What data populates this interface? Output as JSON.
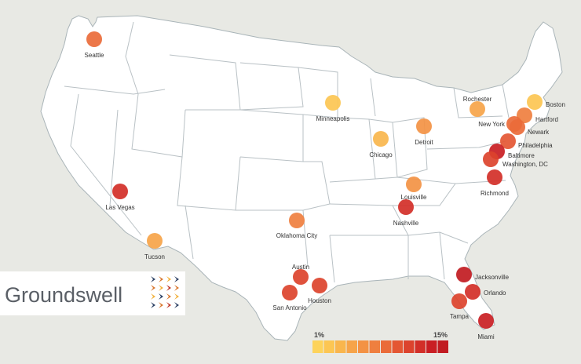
{
  "map": {
    "background": "#e8e9e4",
    "land_fill": "#ffffff",
    "border_color": "#b9c1c5"
  },
  "logo": {
    "text": "Groundswell",
    "icon": "chevron-mosaic-icon",
    "colors": [
      "#2b3f63",
      "#d9782f",
      "#f2b23e",
      "#c0392b"
    ]
  },
  "legend": {
    "min_label": "1%",
    "max_label": "15%",
    "colors": [
      "#fdd35b",
      "#fcc653",
      "#f9b64d",
      "#f6a449",
      "#f39244",
      "#ef7f3f",
      "#ea6b39",
      "#e45733",
      "#dc432d",
      "#d22f28",
      "#c91e23",
      "#c11b21"
    ]
  },
  "cities": [
    {
      "name": "Seattle",
      "level": 0.55
    },
    {
      "name": "Minneapolis",
      "level": 0.12
    },
    {
      "name": "Rochester",
      "level": 0.28
    },
    {
      "name": "Boston",
      "level": 0.08
    },
    {
      "name": "Hartford",
      "level": 0.42
    },
    {
      "name": "New York",
      "level": 0.5
    },
    {
      "name": "Newark",
      "level": 0.55
    },
    {
      "name": "Detroit",
      "level": 0.4
    },
    {
      "name": "Chicago",
      "level": 0.15
    },
    {
      "name": "Philadelphia",
      "level": 0.62
    },
    {
      "name": "Baltimore",
      "level": 0.95
    },
    {
      "name": "Washington, DC",
      "level": 0.7
    },
    {
      "name": "Richmond",
      "level": 0.78
    },
    {
      "name": "Louisville",
      "level": 0.4
    },
    {
      "name": "Las Vegas",
      "level": 0.85
    },
    {
      "name": "Nashville",
      "level": 0.78
    },
    {
      "name": "Oklahoma City",
      "level": 0.45
    },
    {
      "name": "Tucson",
      "level": 0.3
    },
    {
      "name": "Austin",
      "level": 0.75
    },
    {
      "name": "San Antonio",
      "level": 0.72
    },
    {
      "name": "Houston",
      "level": 0.75
    },
    {
      "name": "Jacksonville",
      "level": 0.97
    },
    {
      "name": "Orlando",
      "level": 0.85
    },
    {
      "name": "Tampa",
      "level": 0.72
    },
    {
      "name": "Miami",
      "level": 0.92
    }
  ]
}
